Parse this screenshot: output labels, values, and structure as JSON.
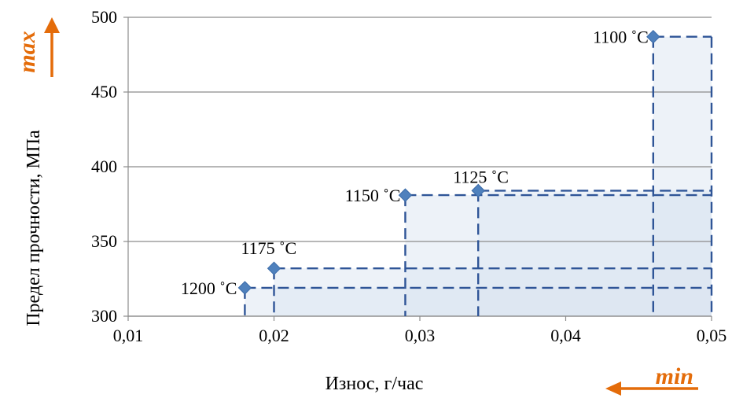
{
  "chart_data": {
    "type": "scatter",
    "xlabel": "Износ, г/час",
    "ylabel": "Предел прочности, МПа",
    "xlim": [
      0.01,
      0.05
    ],
    "ylim": [
      300,
      500
    ],
    "x_ticks": [
      0.01,
      0.02,
      0.03,
      0.04,
      0.05
    ],
    "x_tick_labels": [
      "0,01",
      "0,02",
      "0,03",
      "0,04",
      "0,05"
    ],
    "y_ticks": [
      300,
      350,
      400,
      450,
      500
    ],
    "y_tick_labels": [
      "300",
      "350",
      "400",
      "450",
      "500"
    ],
    "grid": "horizontal",
    "points": [
      {
        "label": "1200 ˚C",
        "x": 0.018,
        "y": 319
      },
      {
        "label": "1175 ˚C",
        "x": 0.02,
        "y": 332
      },
      {
        "label": "1150 ˚C",
        "x": 0.029,
        "y": 381
      },
      {
        "label": "1125 ˚C",
        "x": 0.034,
        "y": 384
      },
      {
        "label": "1100 ˚C",
        "x": 0.046,
        "y": 487
      }
    ],
    "annotations": {
      "y_direction": "max",
      "x_direction": "min"
    },
    "colors": {
      "marker": "#4F81BD",
      "dash": "#2F5597",
      "fill": "#DCE6F2",
      "arrow": "#E46C0A"
    }
  }
}
